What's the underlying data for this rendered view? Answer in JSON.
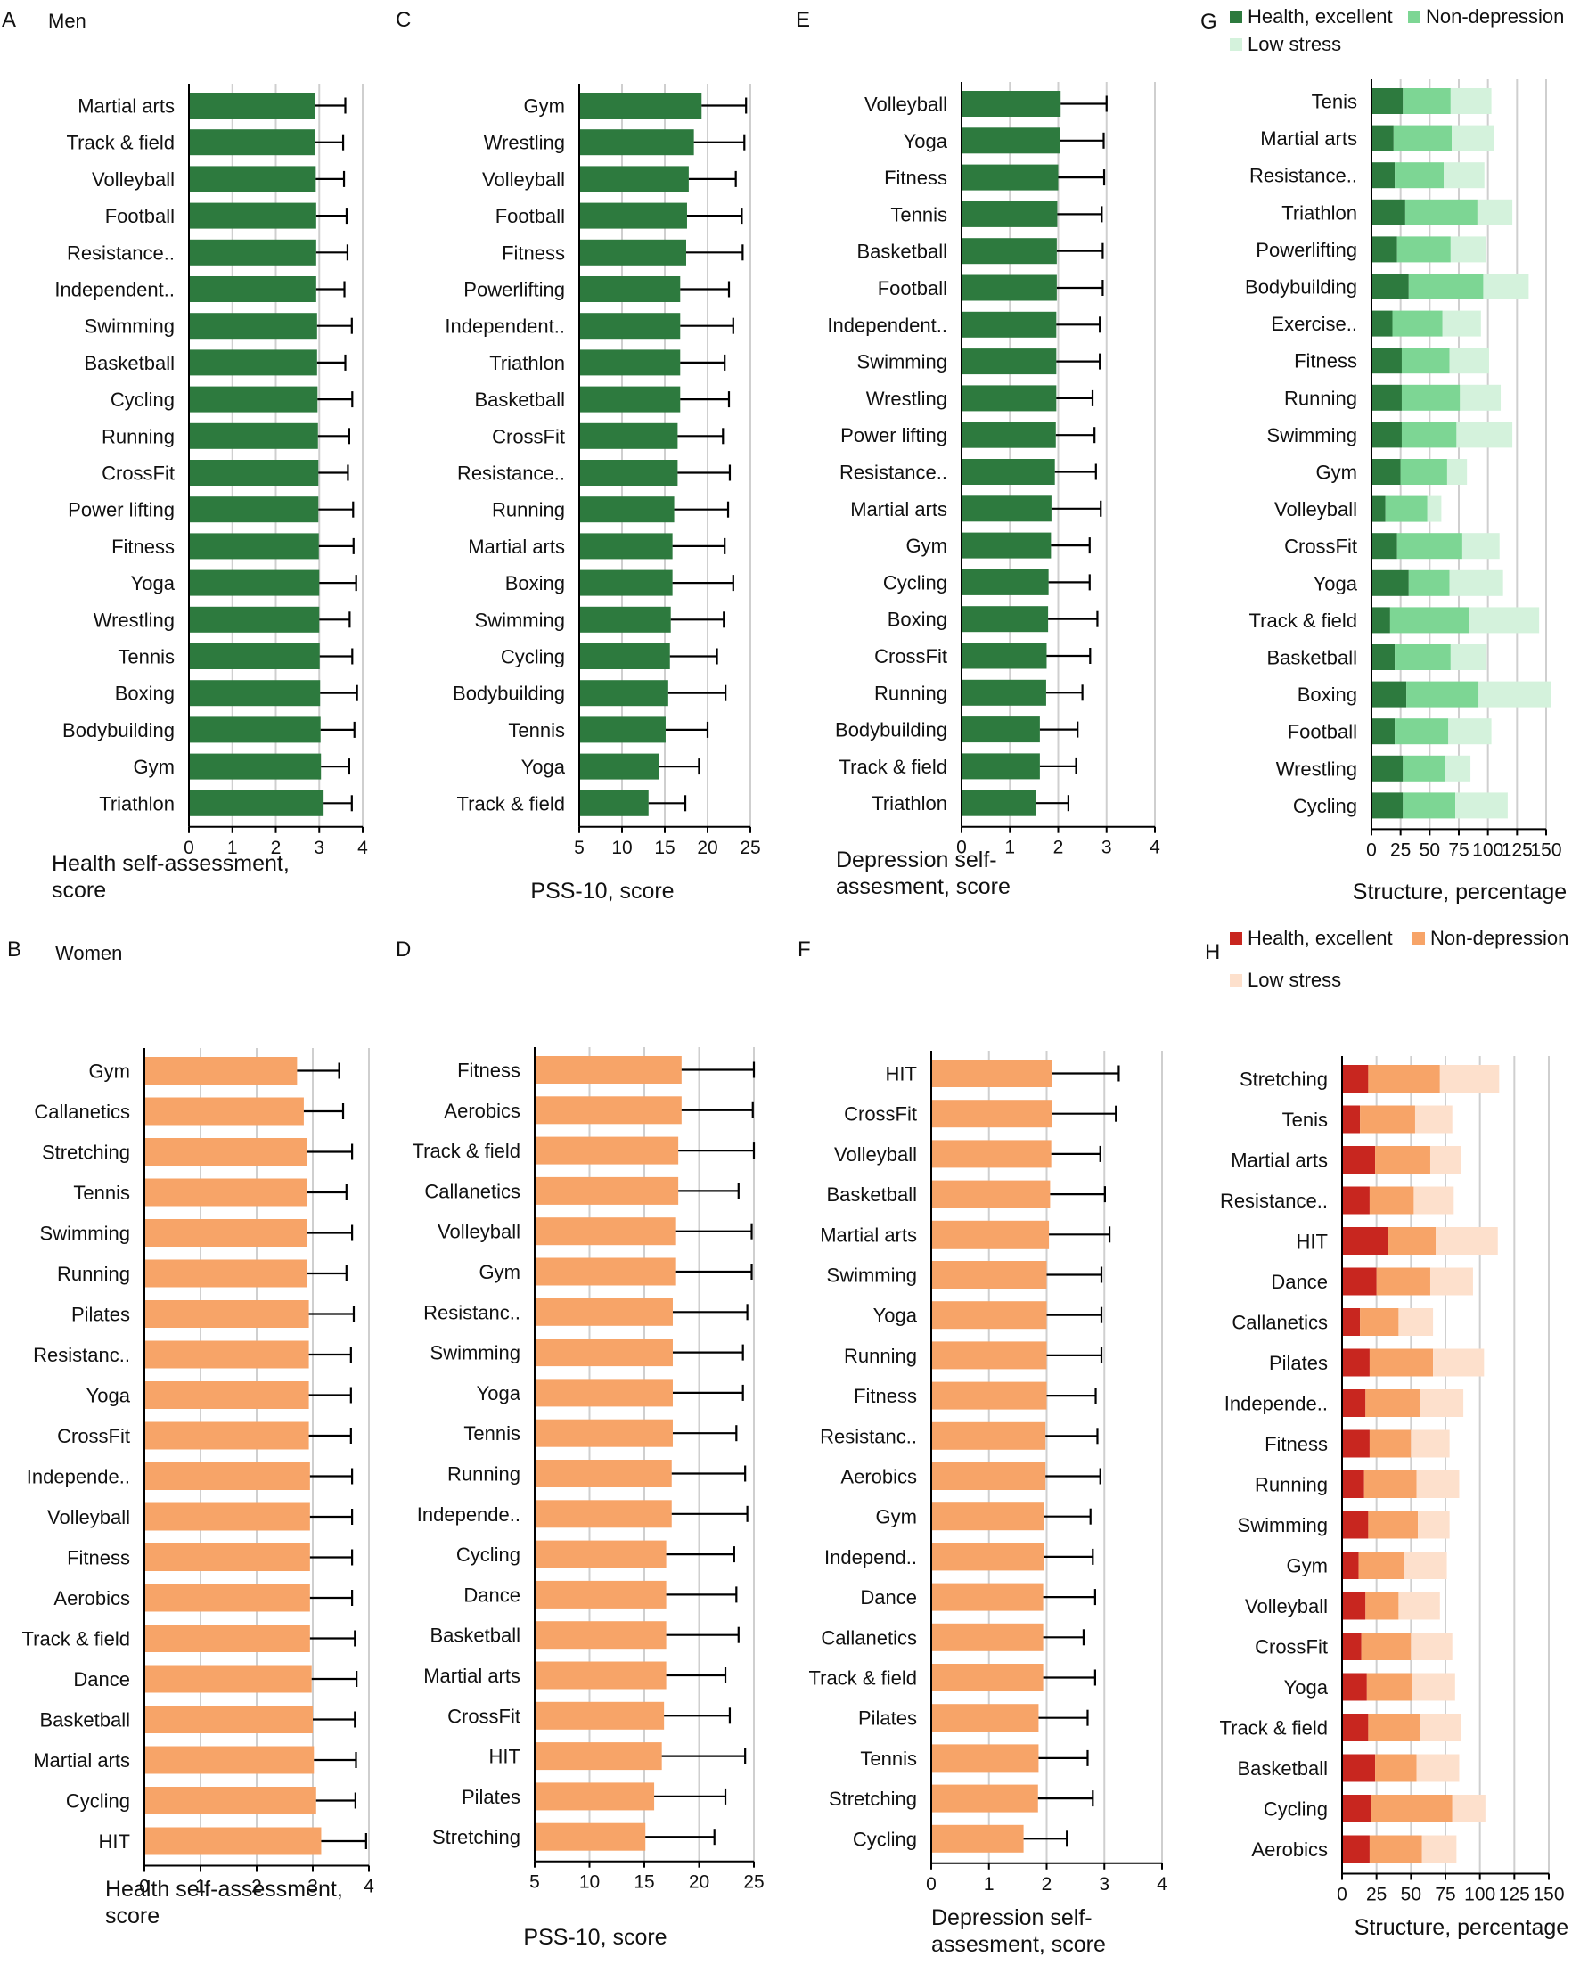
{
  "colors": {
    "men_bar": "#2d7a3e",
    "women_bar": "#f7a468",
    "grid": "#cfcfcf",
    "men_stack": [
      "#2d7a3e",
      "#7dd694",
      "#d4f2dc"
    ],
    "women_stack": [
      "#c8261f",
      "#f7a468",
      "#fde0cc"
    ]
  },
  "rows": {
    "men": {
      "title": "Men"
    },
    "women": {
      "title": "Women"
    }
  },
  "chart_data": [
    {
      "id": "A",
      "type": "bar",
      "orientation": "horizontal",
      "error_bars": true,
      "group": "men",
      "panel_letter": "A",
      "xlabel": "Health self-assessment, score",
      "xlim": [
        0,
        4
      ],
      "ticks": [
        0,
        1,
        2,
        3,
        4
      ],
      "categories": [
        "Martial arts",
        "Track & field",
        "Volleyball",
        "Football",
        "Resistance..",
        "Independent..",
        "Swimming",
        "Basketball",
        "Cycling",
        "Running",
        "CrossFit",
        "Power lifting",
        "Fitness",
        "Yoga",
        "Wrestling",
        "Tennis",
        "Boxing",
        "Bodybuilding",
        "Gym",
        "Triathlon"
      ],
      "values": [
        2.9,
        2.9,
        2.92,
        2.93,
        2.93,
        2.93,
        2.95,
        2.95,
        2.96,
        2.97,
        2.98,
        2.98,
        2.99,
        3.0,
        3.0,
        3.01,
        3.02,
        3.03,
        3.04,
        3.1
      ],
      "errors": [
        0.7,
        0.65,
        0.65,
        0.7,
        0.72,
        0.65,
        0.8,
        0.65,
        0.8,
        0.72,
        0.68,
        0.8,
        0.8,
        0.85,
        0.7,
        0.75,
        0.85,
        0.78,
        0.65,
        0.65
      ]
    },
    {
      "id": "C",
      "type": "bar",
      "orientation": "horizontal",
      "error_bars": true,
      "group": "men",
      "panel_letter": "C",
      "xlabel": "PSS-10, score",
      "xlim": [
        5,
        25
      ],
      "ticks": [
        5,
        10,
        15,
        20,
        25
      ],
      "categories": [
        "Gym",
        "Wrestling",
        "Volleyball",
        "Football",
        "Fitness",
        "Powerlifting",
        "Independent..",
        "Triathlon",
        "Basketball",
        "CrossFit",
        "Resistance..",
        "Running",
        "Martial arts",
        "Boxing",
        "Swimming",
        "Cycling",
        "Bodybuilding",
        "Tennis",
        "Yoga",
        "Track & field"
      ],
      "values": [
        19.3,
        18.4,
        17.8,
        17.6,
        17.5,
        16.8,
        16.8,
        16.8,
        16.8,
        16.5,
        16.5,
        16.1,
        15.9,
        15.9,
        15.7,
        15.6,
        15.4,
        15.1,
        14.3,
        13.1
      ],
      "errors": [
        5.2,
        5.9,
        5.5,
        6.4,
        6.6,
        5.7,
        6.2,
        5.2,
        5.7,
        5.3,
        6.1,
        6.3,
        6.1,
        7.1,
        6.2,
        5.5,
        6.7,
        4.9,
        4.7,
        4.3
      ]
    },
    {
      "id": "E",
      "type": "bar",
      "orientation": "horizontal",
      "error_bars": true,
      "group": "men",
      "panel_letter": "E",
      "xlabel": "Depression self-assesment, score",
      "xlim": [
        0,
        4
      ],
      "ticks": [
        0,
        1,
        2,
        3,
        4
      ],
      "categories": [
        "Volleyball",
        "Yoga",
        "Fitness",
        "Tennis",
        "Basketball",
        "Football",
        "Independent..",
        "Swimming",
        "Wrestling",
        "Power lifting",
        "Resistance..",
        "Martial arts",
        "Gym",
        "Cycling",
        "Boxing",
        "CrossFit",
        "Running",
        "Bodybuilding",
        "Track & field",
        "Triathlon"
      ],
      "values": [
        2.05,
        2.04,
        2.0,
        1.98,
        1.97,
        1.97,
        1.96,
        1.96,
        1.96,
        1.95,
        1.93,
        1.86,
        1.85,
        1.8,
        1.79,
        1.76,
        1.75,
        1.62,
        1.62,
        1.53
      ],
      "errors": [
        0.95,
        0.9,
        0.95,
        0.92,
        0.95,
        0.95,
        0.9,
        0.9,
        0.75,
        0.8,
        0.85,
        1.02,
        0.8,
        0.85,
        1.02,
        0.9,
        0.75,
        0.78,
        0.75,
        0.68
      ]
    },
    {
      "id": "G",
      "type": "bar",
      "orientation": "horizontal",
      "stacked": true,
      "group": "men",
      "panel_letter": "G",
      "xlabel": "Structure, percentage",
      "xlim": [
        0,
        150
      ],
      "ticks": [
        0,
        25,
        50,
        75,
        100,
        125,
        150
      ],
      "legend": [
        "Health, excellent",
        "Non-depression",
        "Low stress"
      ],
      "categories": [
        "Tenis",
        "Martial arts",
        "Resistance..",
        "Triathlon",
        "Powerlifting",
        "Bodybuilding",
        "Exercise..",
        "Fitness",
        "Running",
        "Swimming",
        "Gym",
        "Volleyball",
        "CrossFit",
        "Yoga",
        "Track & field",
        "Basketball",
        "Boxing",
        "Football",
        "Wrestling",
        "Cycling"
      ],
      "series": [
        {
          "name": "Health, excellent",
          "values": [
            27,
            19,
            20,
            29,
            22,
            32,
            18,
            26,
            26,
            26,
            25,
            12,
            22,
            32,
            16,
            20,
            30,
            20,
            27,
            27
          ]
        },
        {
          "name": "Non-depression",
          "values": [
            41,
            50,
            42,
            62,
            46,
            64,
            43,
            41,
            50,
            47,
            40,
            36,
            56,
            35,
            68,
            48,
            62,
            46,
            36,
            45
          ]
        },
        {
          "name": "Low stress",
          "values": [
            35,
            36,
            35,
            30,
            30,
            39,
            33,
            34,
            35,
            48,
            17,
            12,
            32,
            46,
            60,
            31,
            62,
            37,
            22,
            45
          ]
        }
      ]
    },
    {
      "id": "B",
      "type": "bar",
      "orientation": "horizontal",
      "error_bars": true,
      "group": "women",
      "panel_letter": "B",
      "xlabel": "Health self-assessment, score",
      "xlim": [
        0,
        4
      ],
      "ticks": [
        0,
        1,
        2,
        3,
        4
      ],
      "categories": [
        "Gym",
        "Callanetics",
        "Stretching",
        "Tennis",
        "Swimming",
        "Running",
        "Pilates",
        "Resistanc..",
        "Yoga",
        "CrossFit",
        "Independe..",
        "Volleyball",
        "Fitness",
        "Aerobics",
        "Track & field",
        "Dance",
        "Basketball",
        "Martial arts",
        "Cycling",
        "HIT"
      ],
      "values": [
        2.72,
        2.84,
        2.9,
        2.9,
        2.9,
        2.9,
        2.93,
        2.93,
        2.93,
        2.93,
        2.95,
        2.95,
        2.95,
        2.95,
        2.95,
        2.98,
        3.0,
        3.02,
        3.06,
        3.15
      ],
      "errors": [
        0.75,
        0.7,
        0.8,
        0.7,
        0.8,
        0.7,
        0.8,
        0.75,
        0.75,
        0.75,
        0.75,
        0.75,
        0.75,
        0.75,
        0.8,
        0.8,
        0.75,
        0.75,
        0.7,
        0.8
      ]
    },
    {
      "id": "D",
      "type": "bar",
      "orientation": "horizontal",
      "error_bars": true,
      "group": "women",
      "panel_letter": "D",
      "xlabel": "PSS-10, score",
      "xlim": [
        5,
        25
      ],
      "ticks": [
        5,
        10,
        15,
        20,
        25
      ],
      "categories": [
        "Fitness",
        "Aerobics",
        "Track & field",
        "Callanetics",
        "Volleyball",
        "Gym",
        "Resistanc..",
        "Swimming",
        "Yoga",
        "Tennis",
        "Running",
        "Independe..",
        "Cycling",
        "Dance",
        "Basketball",
        "Martial arts",
        "CrossFit",
        "HIT",
        "Pilates",
        "Stretching"
      ],
      "values": [
        18.4,
        18.4,
        18.1,
        18.1,
        17.9,
        17.9,
        17.6,
        17.6,
        17.6,
        17.6,
        17.5,
        17.5,
        17.0,
        17.0,
        17.0,
        17.0,
        16.8,
        16.6,
        15.9,
        15.1
      ],
      "errors": [
        6.6,
        6.5,
        6.9,
        5.5,
        6.9,
        6.9,
        6.8,
        6.4,
        6.4,
        5.8,
        6.7,
        6.9,
        6.2,
        6.4,
        6.6,
        5.4,
        6.0,
        7.6,
        6.5,
        6.3
      ]
    },
    {
      "id": "F",
      "type": "bar",
      "orientation": "horizontal",
      "error_bars": true,
      "group": "women",
      "panel_letter": "F",
      "xlabel": "Depression self-assesment, score",
      "xlim": [
        0,
        4
      ],
      "ticks": [
        0,
        1,
        2,
        3,
        4
      ],
      "categories": [
        "HIT",
        "CrossFit",
        "Volleyball",
        "Basketball",
        "Martial arts",
        "Swimming",
        "Yoga",
        "Running",
        "Fitness",
        "Resistanc..",
        "Aerobics",
        "Gym",
        "Independ..",
        "Dance",
        "Callanetics",
        "Track & field",
        "Pilates",
        "Tennis",
        "Stretching",
        "Cycling"
      ],
      "values": [
        2.1,
        2.1,
        2.08,
        2.06,
        2.04,
        2.0,
        2.0,
        2.0,
        2.0,
        1.98,
        1.98,
        1.96,
        1.95,
        1.94,
        1.94,
        1.94,
        1.86,
        1.86,
        1.85,
        1.6
      ],
      "errors": [
        1.15,
        1.1,
        0.85,
        0.95,
        1.05,
        0.95,
        0.95,
        0.95,
        0.85,
        0.9,
        0.95,
        0.8,
        0.85,
        0.9,
        0.7,
        0.9,
        0.85,
        0.85,
        0.95,
        0.75
      ]
    },
    {
      "id": "H",
      "type": "bar",
      "orientation": "horizontal",
      "stacked": true,
      "group": "women",
      "panel_letter": "H",
      "xlabel": "Structure, percentage",
      "xlim": [
        0,
        150
      ],
      "ticks": [
        0,
        25,
        50,
        75,
        100,
        125,
        150
      ],
      "legend": [
        "Health, excellent",
        "Non-depression",
        "Low stress"
      ],
      "categories": [
        "Stretching",
        "Tenis",
        "Martial arts",
        "Resistance..",
        "HIT",
        "Dance",
        "Callanetics",
        "Pilates",
        "Independe..",
        "Fitness",
        "Running",
        "Swimming",
        "Gym",
        "Volleyball",
        "CrossFit",
        "Yoga",
        "Track & field",
        "Basketball",
        "Cycling",
        "Aerobics"
      ],
      "series": [
        {
          "name": "Health, excellent",
          "values": [
            19,
            13,
            24,
            20,
            33,
            25,
            13,
            20,
            17,
            20,
            16,
            19,
            12,
            17,
            14,
            18,
            19,
            24,
            21,
            20
          ]
        },
        {
          "name": "Non-depression",
          "values": [
            52,
            40,
            40,
            32,
            35,
            39,
            28,
            46,
            40,
            30,
            38,
            36,
            33,
            24,
            36,
            33,
            38,
            30,
            59,
            38
          ]
        },
        {
          "name": "Low stress",
          "values": [
            43,
            27,
            22,
            29,
            45,
            31,
            25,
            37,
            31,
            28,
            31,
            23,
            31,
            30,
            30,
            31,
            29,
            31,
            24,
            25
          ]
        }
      ]
    }
  ]
}
